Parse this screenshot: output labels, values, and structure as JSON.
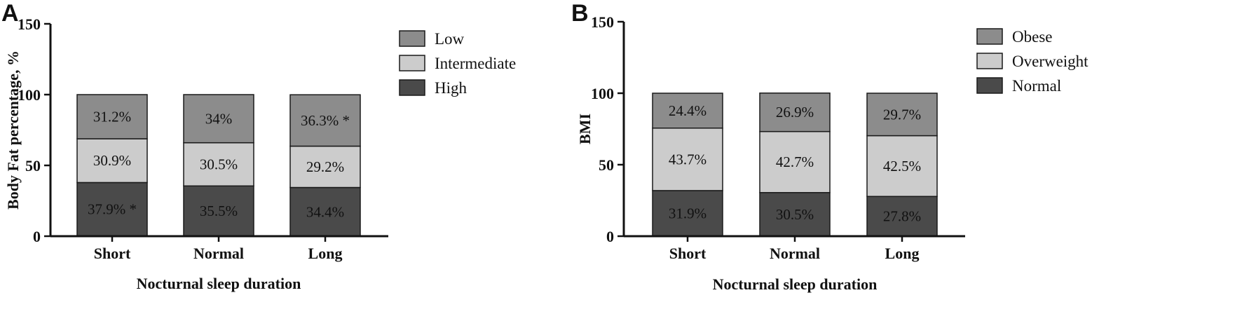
{
  "chart_data": [
    {
      "panel": "A",
      "type": "bar",
      "stacked": true,
      "categories": [
        "Short",
        "Normal",
        "Long"
      ],
      "series": [
        {
          "name": "High",
          "color": "#4a4a4a",
          "values": [
            37.9,
            35.5,
            34.4
          ],
          "labels": [
            "37.9% *",
            "35.5%",
            "34.4%"
          ]
        },
        {
          "name": "Intermediate",
          "color": "#cccccc",
          "values": [
            30.9,
            30.5,
            29.2
          ],
          "labels": [
            "30.9%",
            "30.5%",
            "29.2%"
          ]
        },
        {
          "name": "Low",
          "color": "#8c8c8c",
          "values": [
            31.2,
            34,
            36.3
          ],
          "labels": [
            "31.2%",
            "34%",
            "36.3% *"
          ]
        }
      ],
      "legend_order": [
        "Low",
        "Intermediate",
        "High"
      ],
      "xlabel": "Nocturnal sleep duration",
      "ylabel": "Body Fat percentage, %",
      "ylim": [
        0,
        150
      ],
      "yticks": [
        0,
        50,
        100,
        150
      ],
      "legend_position": "right",
      "grid": false
    },
    {
      "panel": "B",
      "type": "bar",
      "stacked": true,
      "categories": [
        "Short",
        "Normal",
        "Long"
      ],
      "series": [
        {
          "name": "Normal",
          "color": "#4a4a4a",
          "values": [
            31.9,
            30.5,
            27.8
          ],
          "labels": [
            "31.9%",
            "30.5%",
            "27.8%"
          ]
        },
        {
          "name": "Overweight",
          "color": "#cccccc",
          "values": [
            43.7,
            42.7,
            42.5
          ],
          "labels": [
            "43.7%",
            "42.7%",
            "42.5%"
          ]
        },
        {
          "name": "Obese",
          "color": "#8c8c8c",
          "values": [
            24.4,
            26.9,
            29.7
          ],
          "labels": [
            "24.4%",
            "26.9%",
            "29.7%"
          ]
        }
      ],
      "legend_order": [
        "Obese",
        "Overweight",
        "Normal"
      ],
      "xlabel": "Nocturnal sleep duration",
      "ylabel": "BMI",
      "ylim": [
        0,
        150
      ],
      "yticks": [
        0,
        50,
        100,
        150
      ],
      "legend_position": "right",
      "grid": false
    }
  ]
}
